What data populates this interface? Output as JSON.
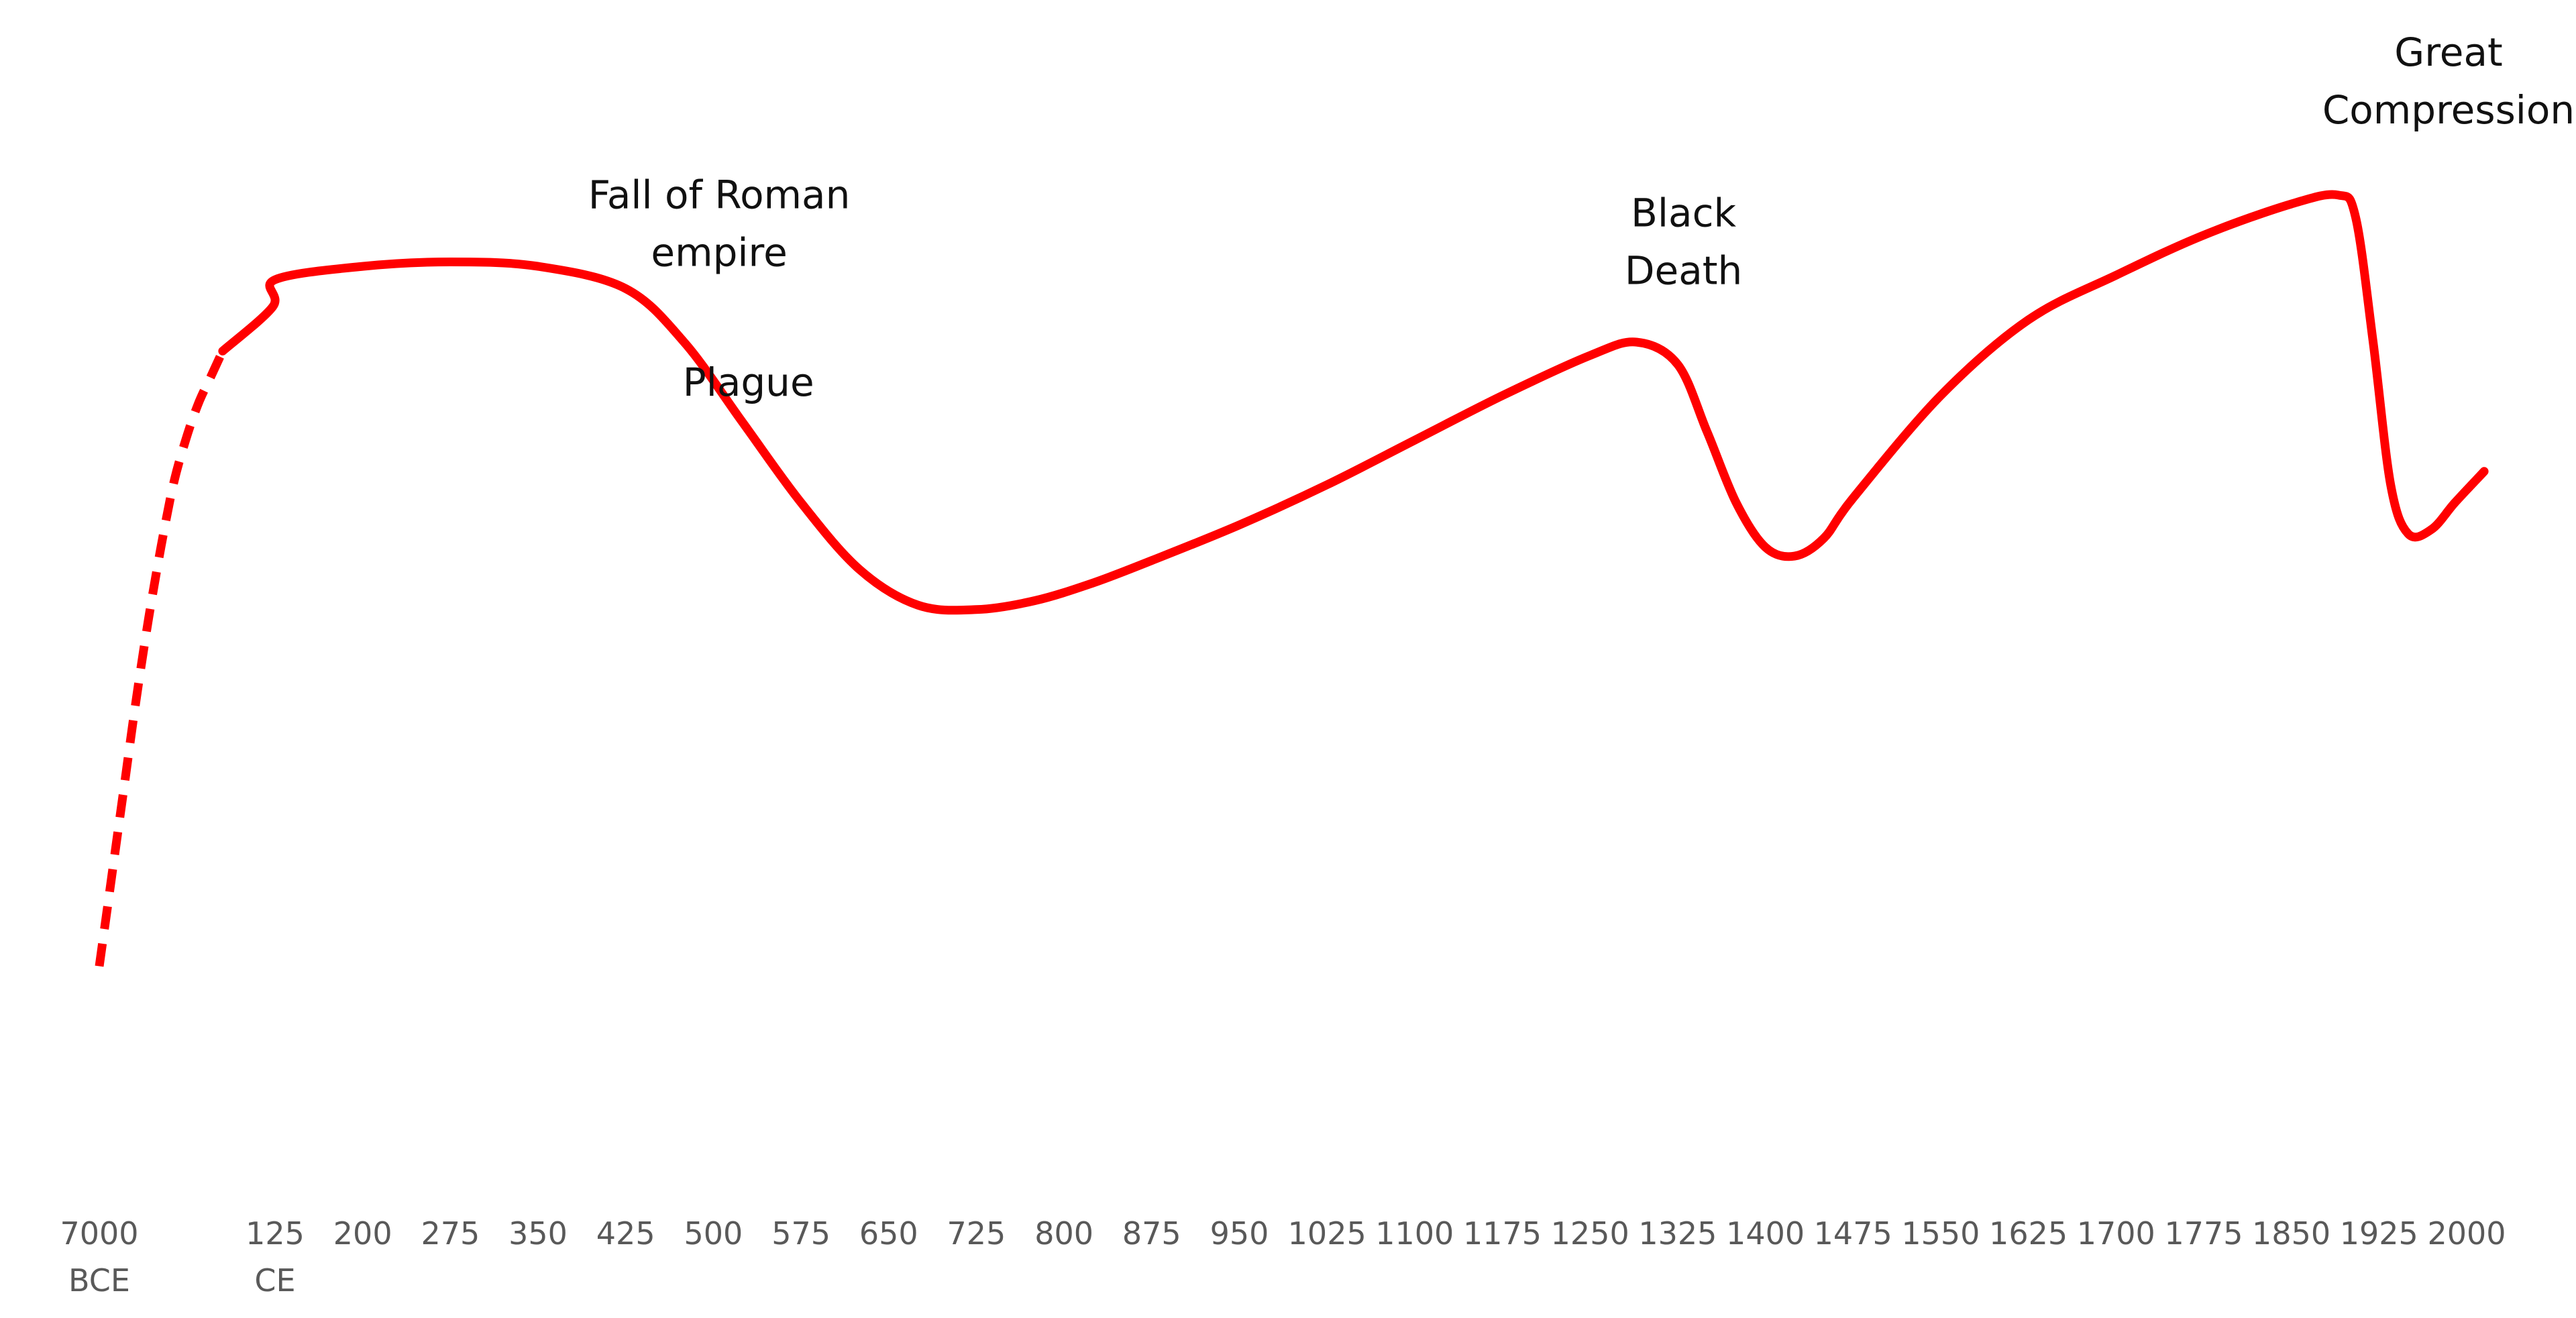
{
  "chart_data": {
    "type": "line",
    "title": "",
    "xlabel": "",
    "ylabel": "",
    "grid": false,
    "legend": "none",
    "line_color": "#FF0000",
    "x_tick_labels": [
      {
        "x": -7000,
        "lines": [
          "7000",
          "BCE"
        ]
      },
      {
        "x": 125,
        "lines": [
          "125",
          "CE"
        ]
      },
      {
        "x": 200,
        "lines": [
          "200"
        ]
      },
      {
        "x": 275,
        "lines": [
          "275"
        ]
      },
      {
        "x": 350,
        "lines": [
          "350"
        ]
      },
      {
        "x": 425,
        "lines": [
          "425"
        ]
      },
      {
        "x": 500,
        "lines": [
          "500"
        ]
      },
      {
        "x": 575,
        "lines": [
          "575"
        ]
      },
      {
        "x": 650,
        "lines": [
          "650"
        ]
      },
      {
        "x": 725,
        "lines": [
          "725"
        ]
      },
      {
        "x": 800,
        "lines": [
          "800"
        ]
      },
      {
        "x": 875,
        "lines": [
          "875"
        ]
      },
      {
        "x": 950,
        "lines": [
          "950"
        ]
      },
      {
        "x": 1025,
        "lines": [
          "1025"
        ]
      },
      {
        "x": 1100,
        "lines": [
          "1100"
        ]
      },
      {
        "x": 1175,
        "lines": [
          "1175"
        ]
      },
      {
        "x": 1250,
        "lines": [
          "1250"
        ]
      },
      {
        "x": 1325,
        "lines": [
          "1325"
        ]
      },
      {
        "x": 1400,
        "lines": [
          "1400"
        ]
      },
      {
        "x": 1475,
        "lines": [
          "1475"
        ]
      },
      {
        "x": 1550,
        "lines": [
          "1550"
        ]
      },
      {
        "x": 1625,
        "lines": [
          "1625"
        ]
      },
      {
        "x": 1700,
        "lines": [
          "1700"
        ]
      },
      {
        "x": 1775,
        "lines": [
          "1775"
        ]
      },
      {
        "x": 1850,
        "lines": [
          "1850"
        ]
      },
      {
        "x": 1925,
        "lines": [
          "1925"
        ]
      },
      {
        "x": 2000,
        "lines": [
          "2000"
        ]
      }
    ],
    "series": [
      {
        "style": "dashed",
        "points": [
          [
            -7000,
            12
          ],
          [
            -6500,
            22
          ],
          [
            -6000,
            32
          ],
          [
            -5500,
            42
          ],
          [
            -5000,
            51
          ],
          [
            -4500,
            59
          ],
          [
            -4000,
            66
          ],
          [
            -3500,
            71
          ],
          [
            -3000,
            75
          ],
          [
            -2500,
            78
          ],
          [
            -2000,
            81
          ]
        ]
      },
      {
        "style": "solid",
        "points": [
          [
            -2000,
            81
          ],
          [
            40,
            86
          ],
          [
            125,
            89
          ],
          [
            200,
            90.5
          ],
          [
            275,
            91
          ],
          [
            350,
            90.5
          ],
          [
            425,
            88
          ],
          [
            475,
            82
          ],
          [
            525,
            73
          ],
          [
            575,
            64
          ],
          [
            625,
            56.5
          ],
          [
            675,
            52.5
          ],
          [
            725,
            52
          ],
          [
            775,
            53
          ],
          [
            825,
            55
          ],
          [
            875,
            57.5
          ],
          [
            950,
            61.5
          ],
          [
            1025,
            66
          ],
          [
            1100,
            71
          ],
          [
            1175,
            76
          ],
          [
            1250,
            80.5
          ],
          [
            1290,
            82
          ],
          [
            1325,
            79.5
          ],
          [
            1350,
            72
          ],
          [
            1375,
            64
          ],
          [
            1400,
            59
          ],
          [
            1425,
            58
          ],
          [
            1450,
            60
          ],
          [
            1475,
            64.5
          ],
          [
            1550,
            76
          ],
          [
            1625,
            84.5
          ],
          [
            1700,
            89.5
          ],
          [
            1775,
            94
          ],
          [
            1850,
            97.5
          ],
          [
            1890,
            98.5
          ],
          [
            1905,
            96
          ],
          [
            1920,
            82
          ],
          [
            1935,
            66
          ],
          [
            1950,
            60.5
          ],
          [
            1970,
            61
          ],
          [
            1990,
            64
          ],
          [
            2015,
            67.5
          ]
        ]
      }
    ],
    "annotations": [
      {
        "lines": [
          "Fall of Roman",
          "empire"
        ],
        "x": 505,
        "y": 97
      },
      {
        "lines": [
          "Plague"
        ],
        "x": 530,
        "y": 76
      },
      {
        "lines": [
          "Black",
          "Death"
        ],
        "x": 1330,
        "y": 95
      },
      {
        "lines": [
          "Great",
          "Compression"
        ],
        "x": 2000,
        "y": 113
      }
    ]
  }
}
